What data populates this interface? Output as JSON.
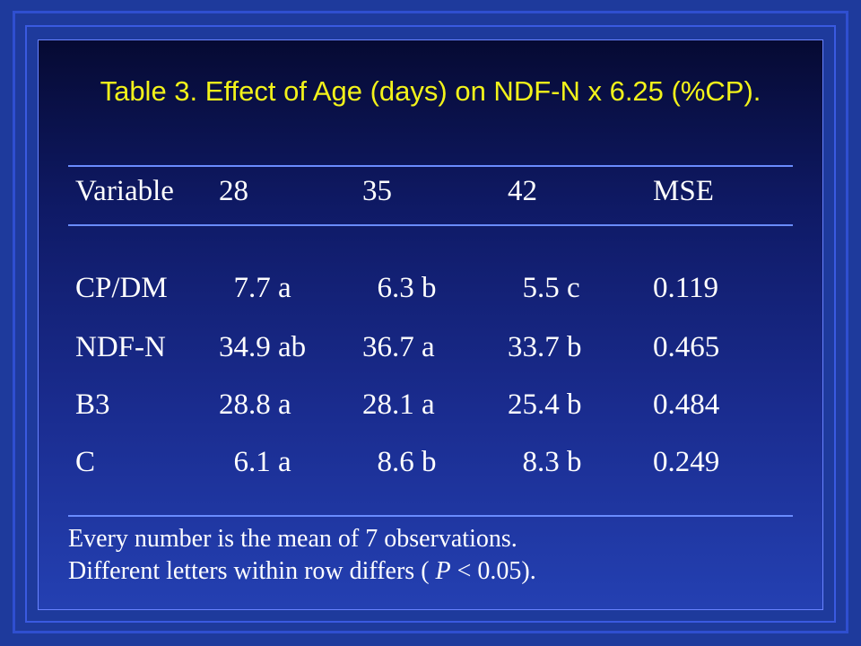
{
  "title": "Table 3. Effect of Age (days) on NDF-N x 6.25 (%CP).",
  "table": {
    "headers": [
      "Variable",
      "28",
      "35",
      "42",
      "MSE"
    ],
    "rows": [
      [
        "CP/DM",
        "  7.7 a",
        "  6.3 b",
        "  5.5 c",
        "0.119"
      ],
      [
        "NDF-N",
        "34.9 ab",
        "36.7 a",
        "33.7 b",
        "0.465"
      ],
      [
        "B3",
        "28.8 a",
        "28.1 a",
        "25.4 b",
        "0.484"
      ],
      [
        "C",
        "  6.1 a",
        "  8.6 b",
        "  8.3 b",
        "0.249"
      ]
    ]
  },
  "notes": {
    "line1": "Every number is the mean of 7 observations.",
    "line2_pre": "Different letters within row differs ( ",
    "line2_p": "P",
    "line2_post": " < 0.05)."
  },
  "colors": {
    "background": "#1e3a9c",
    "title": "#f2f21a",
    "text": "#ffffff",
    "rule": "#6a8cff"
  }
}
